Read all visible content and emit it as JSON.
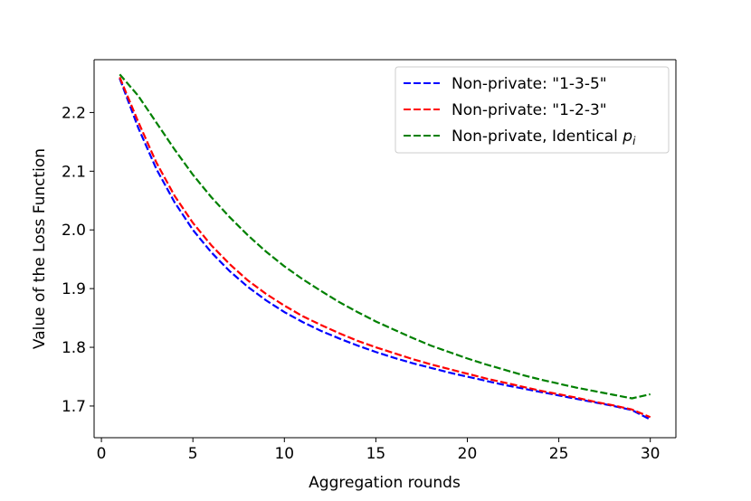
{
  "chart_data": {
    "type": "line",
    "title": "",
    "xlabel": "Aggregation rounds",
    "ylabel": "Value of the Loss Function",
    "xlim": [
      -0.4,
      31.4
    ],
    "ylim": [
      1.646,
      2.29
    ],
    "xticks": [
      0,
      5,
      10,
      15,
      20,
      25,
      30
    ],
    "yticks": [
      1.7,
      1.8,
      1.9,
      2.0,
      2.1,
      2.2
    ],
    "ytick_labels": [
      "1.7",
      "1.8",
      "1.9",
      "2.0",
      "2.1",
      "2.2"
    ],
    "grid": false,
    "legend_position": "top-right",
    "x": [
      1,
      2,
      3,
      4,
      5,
      6,
      7,
      8,
      9,
      10,
      11,
      12,
      13,
      14,
      15,
      16,
      17,
      18,
      19,
      20,
      21,
      22,
      23,
      24,
      25,
      26,
      27,
      28,
      29,
      30
    ],
    "series": [
      {
        "name": "Non-private: \"1-3-5\"",
        "color": "#0000ff",
        "values": [
          2.258,
          2.175,
          2.104,
          2.047,
          2.0,
          1.962,
          1.93,
          1.903,
          1.88,
          1.86,
          1.843,
          1.828,
          1.815,
          1.803,
          1.792,
          1.782,
          1.773,
          1.765,
          1.757,
          1.75,
          1.743,
          1.736,
          1.73,
          1.724,
          1.718,
          1.712,
          1.706,
          1.7,
          1.693,
          1.677
        ]
      },
      {
        "name": "Non-private: \"1-2-3\"",
        "color": "#ff0000",
        "values": [
          2.26,
          2.185,
          2.115,
          2.058,
          2.012,
          1.974,
          1.942,
          1.914,
          1.891,
          1.871,
          1.853,
          1.838,
          1.824,
          1.811,
          1.8,
          1.79,
          1.78,
          1.771,
          1.763,
          1.755,
          1.747,
          1.74,
          1.733,
          1.726,
          1.72,
          1.714,
          1.707,
          1.701,
          1.694,
          1.681
        ]
      },
      {
        "name": "Non-private, Identical p_i",
        "color": "#008000",
        "values": [
          2.265,
          2.229,
          2.183,
          2.137,
          2.094,
          2.056,
          2.022,
          1.991,
          1.963,
          1.938,
          1.916,
          1.896,
          1.877,
          1.86,
          1.844,
          1.83,
          1.816,
          1.803,
          1.792,
          1.781,
          1.771,
          1.762,
          1.753,
          1.745,
          1.738,
          1.731,
          1.725,
          1.719,
          1.713,
          1.72
        ]
      }
    ],
    "legend": {
      "entries": [
        {
          "label": "Non-private: \"1-3-5\""
        },
        {
          "label": "Non-private: \"1-2-3\""
        },
        {
          "label_main": "Non-private, Identical ",
          "label_var": "p",
          "label_sub": "i"
        }
      ]
    }
  }
}
